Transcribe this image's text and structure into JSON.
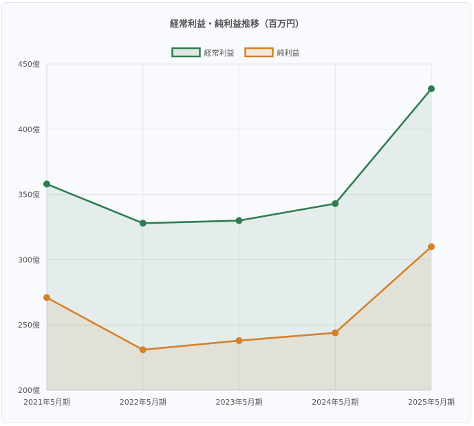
{
  "chart_data": {
    "type": "line",
    "title": "経常利益・純利益推移（百万円）",
    "categories": [
      "2021年5月期",
      "2022年5月期",
      "2023年5月期",
      "2024年5月期",
      "2025年5月期"
    ],
    "series": [
      {
        "name": "経常利益",
        "values": [
          358,
          328,
          330,
          343,
          431
        ],
        "color": "#2e7d4f",
        "fill": "#dfe8e3"
      },
      {
        "name": "純利益",
        "values": [
          271,
          231,
          238,
          244,
          310
        ],
        "color": "#d4812a",
        "fill": "#f8e8da"
      }
    ],
    "yticks": [
      "200億",
      "250億",
      "300億",
      "350億",
      "400億",
      "450億"
    ],
    "ylim": [
      200,
      450
    ],
    "ystep": 50,
    "grid": true,
    "legend": "top",
    "area_fill": true
  }
}
